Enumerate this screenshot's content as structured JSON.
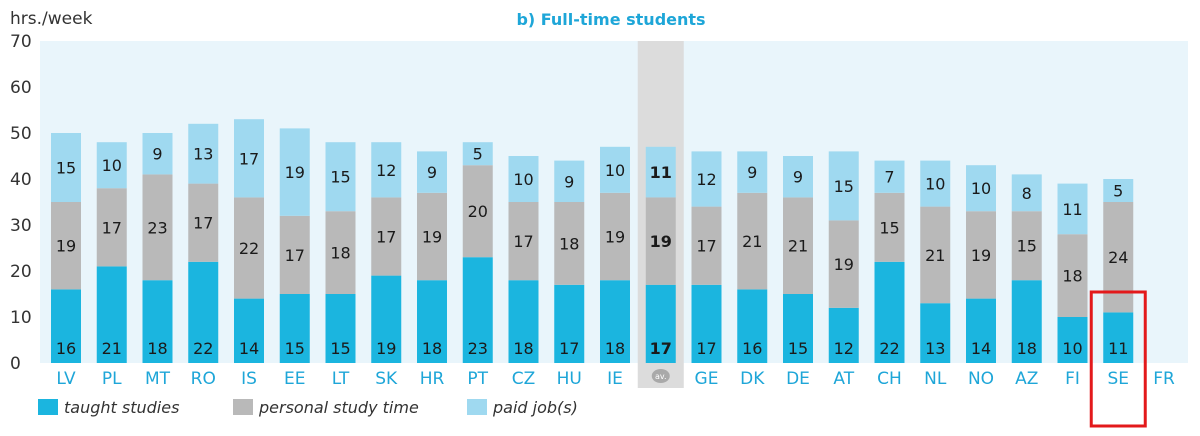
{
  "chart_data": {
    "type": "bar",
    "stacked": true,
    "title": "b) Full-time students",
    "ylabel": "hrs./week",
    "ylim": [
      0,
      70
    ],
    "yticks": [
      0,
      10,
      20,
      30,
      40,
      50,
      60,
      70
    ],
    "grid": false,
    "legend_position": "bottom-left",
    "categories": [
      "LV",
      "PL",
      "MT",
      "RO",
      "IS",
      "EE",
      "LT",
      "SK",
      "HR",
      "PT",
      "CZ",
      "HU",
      "IE",
      "av.",
      "GE",
      "DK",
      "DE",
      "AT",
      "CH",
      "NL",
      "NO",
      "AZ",
      "FI",
      "SE",
      "FR"
    ],
    "series": [
      {
        "name": "taught studies",
        "color": "#1bb5df",
        "values": [
          16,
          21,
          18,
          22,
          14,
          15,
          15,
          19,
          18,
          23,
          18,
          17,
          18,
          17,
          17,
          16,
          15,
          12,
          22,
          13,
          14,
          18,
          10,
          11,
          null
        ]
      },
      {
        "name": "personal study time",
        "color": "#b9b9b9",
        "values": [
          19,
          17,
          23,
          17,
          22,
          17,
          18,
          17,
          19,
          20,
          17,
          18,
          19,
          19,
          17,
          21,
          21,
          19,
          15,
          21,
          19,
          15,
          18,
          24,
          null
        ]
      },
      {
        "name": "paid job(s)",
        "color": "#9fd9f0",
        "values": [
          15,
          10,
          9,
          13,
          17,
          19,
          15,
          12,
          9,
          5,
          10,
          9,
          10,
          11,
          12,
          9,
          9,
          15,
          7,
          10,
          10,
          8,
          11,
          5,
          null
        ]
      }
    ],
    "highlight_category": "av.",
    "marked_category": "SE",
    "colors": {
      "plot_background": "#e9f5fb",
      "average_band": "#dcdcdc",
      "tick_label": "#1ea6d8",
      "title": "#1ea6d8",
      "marker_box": "#e3191b",
      "average_badge": "#a9a9a9"
    }
  }
}
